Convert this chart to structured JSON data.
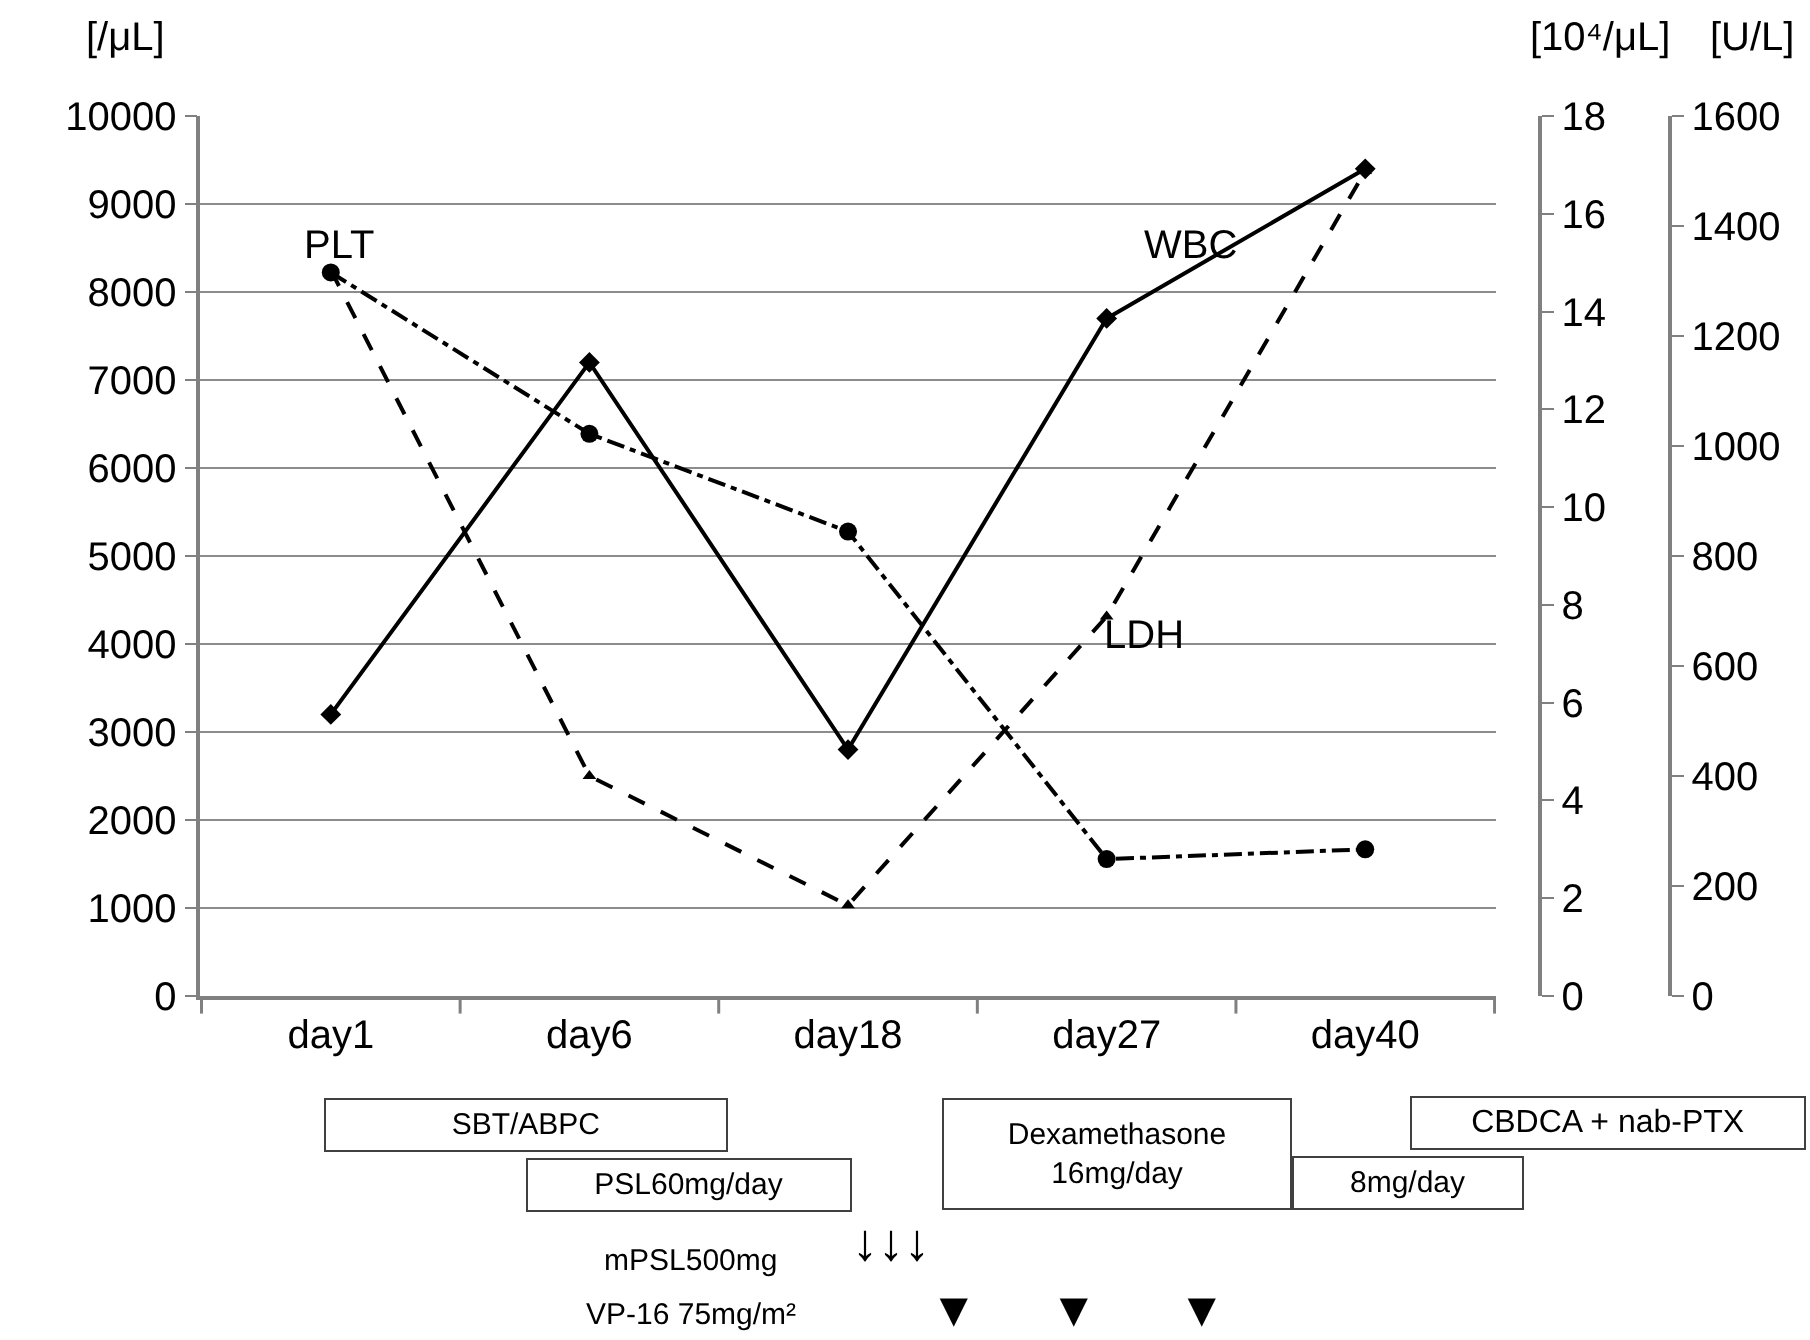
{
  "chart_data": {
    "type": "line",
    "categories": [
      "day1",
      "day6",
      "day18",
      "day27",
      "day40"
    ],
    "ylabel": "[/μL]",
    "y2label": "[10⁴/μL]",
    "y3label": "[U/L]",
    "ylim": [
      0,
      10000
    ],
    "yticks": [
      0,
      1000,
      2000,
      3000,
      4000,
      5000,
      6000,
      7000,
      8000,
      9000,
      10000
    ],
    "y2lim": [
      0,
      18
    ],
    "y2ticks": [
      0,
      2,
      4,
      6,
      8,
      10,
      12,
      14,
      16,
      18
    ],
    "y3lim": [
      0,
      1600
    ],
    "y3ticks": [
      0,
      200,
      400,
      600,
      800,
      1000,
      1200,
      1400,
      1600
    ],
    "grid": "y",
    "legend": false,
    "series": [
      {
        "name": "WBC",
        "color": "#000000",
        "values": [
          3200,
          7200,
          2800,
          7700,
          9400
        ],
        "marker": "diamond",
        "line_style": "solid"
      },
      {
        "name": "PLT",
        "color": "#000000",
        "values": [
          14.8,
          11.5,
          9.5,
          2.8,
          3.0
        ],
        "axis": "y2",
        "marker": "circle",
        "line_style": "dashdot"
      },
      {
        "name": "LDH",
        "color": "#000000",
        "values": [
          1320,
          400,
          165,
          690,
          1500
        ],
        "axis": "y3",
        "marker": "triangle",
        "line_style": "dashed"
      }
    ],
    "annotations": [
      "SBT/ABPC",
      "PSL60mg/day",
      "Dexamethasone\n16mg/day",
      "8mg/day",
      "CBDCA + nab-PTX",
      "mPSL500mg",
      "↓↓↓",
      "VP-16 75mg/m²",
      "▼",
      "▼",
      "▼"
    ]
  }
}
